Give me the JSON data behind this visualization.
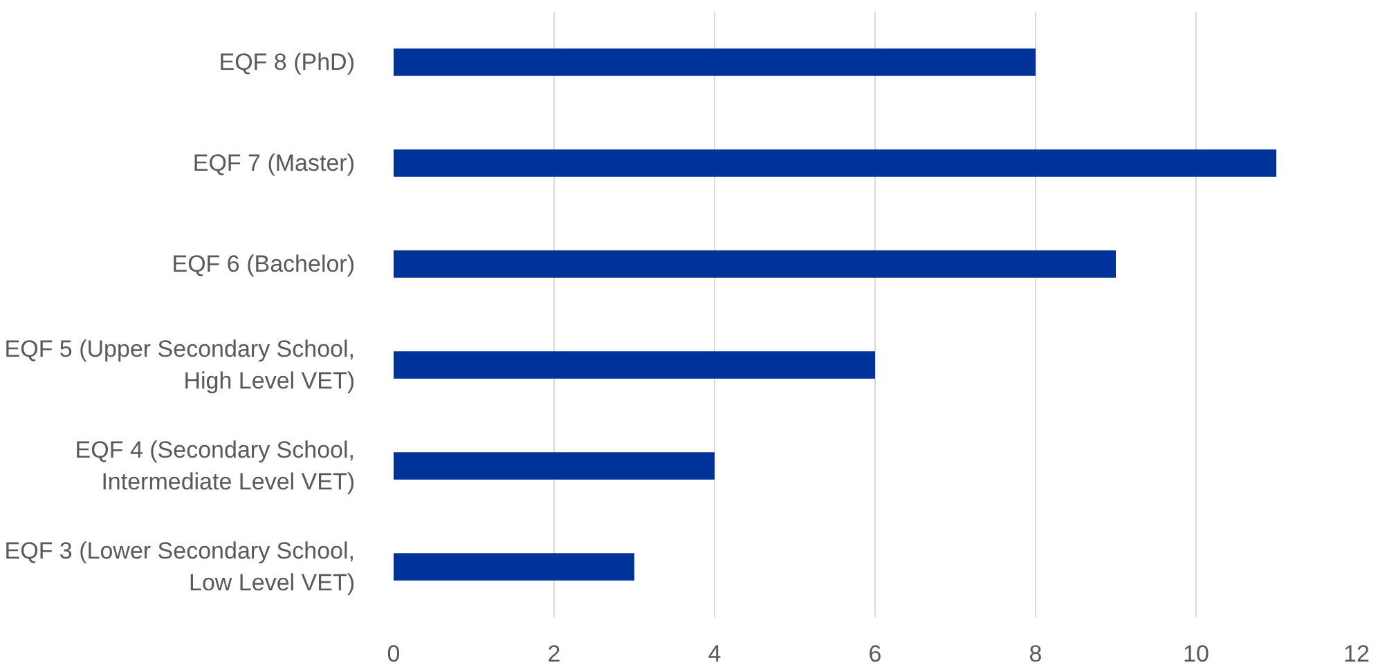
{
  "chart_data": {
    "type": "bar",
    "orientation": "horizontal",
    "categories": [
      "EQF 8 (PhD)",
      "EQF 7 (Master)",
      "EQF 6 (Bachelor)",
      "EQF 5 (Upper Secondary School,\nHigh Level VET)",
      "EQF 4 (Secondary School,\nIntermediate Level VET)",
      "EQF 3 (Lower Secondary School,\nLow Level VET)"
    ],
    "values": [
      8,
      11,
      9,
      6,
      4,
      3
    ],
    "color": "#003399",
    "xlim": [
      0,
      12
    ],
    "xticks": [
      0,
      2,
      4,
      6,
      8,
      10,
      12
    ],
    "grid": "x"
  }
}
